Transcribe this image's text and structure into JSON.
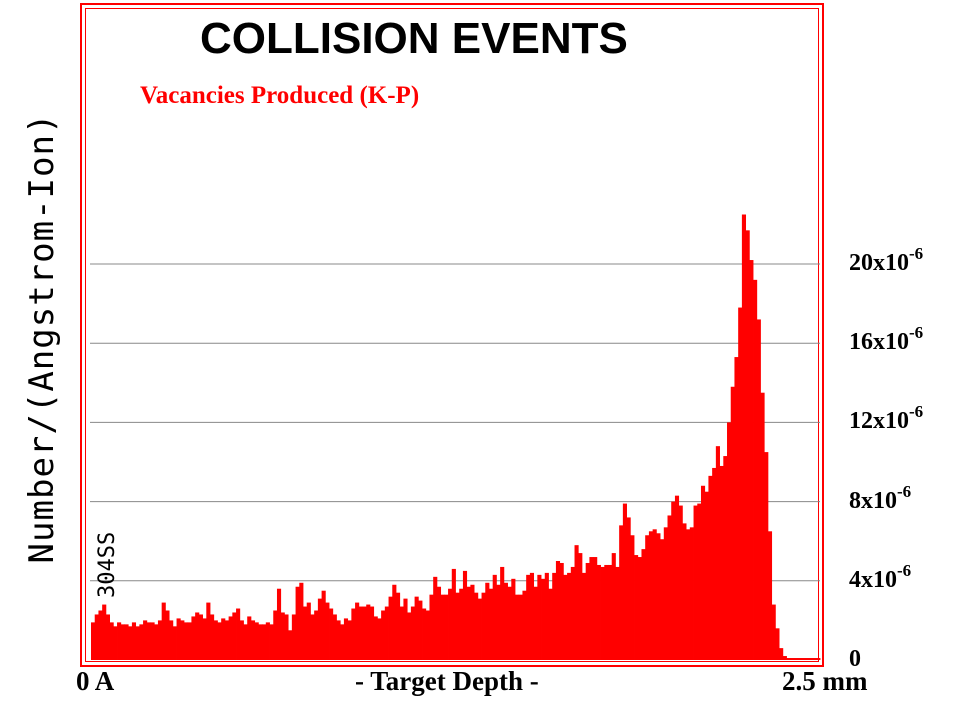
{
  "chart_data": {
    "type": "bar",
    "title": "COLLISION EVENTS",
    "subtitle": "Vacancies Produced (K-P)",
    "ylabel": "Number/(Angstrom-Ion)",
    "target_label": "304SS",
    "xlabel": "- Target Depth -",
    "x_start_label": "0 A",
    "x_end_label": "2.5 mm",
    "xlim": [
      0,
      2.5
    ],
    "x_unit": "mm",
    "ylim": [
      0,
      24
    ],
    "y_unit": "x10^-6",
    "yticks": [
      {
        "value": 0,
        "label": "0",
        "exp": ""
      },
      {
        "value": 4,
        "label": "4x10",
        "exp": "-6"
      },
      {
        "value": 8,
        "label": "8x10",
        "exp": "-6"
      },
      {
        "value": 12,
        "label": "12x10",
        "exp": "-6"
      },
      {
        "value": 16,
        "label": "16x10",
        "exp": "-6"
      },
      {
        "value": 20,
        "label": "20x10",
        "exp": "-6"
      }
    ],
    "grid": true,
    "bar_color": "#ff0000",
    "values": [
      1.9,
      2.3,
      2.5,
      2.8,
      2.3,
      1.9,
      1.7,
      1.9,
      1.8,
      1.8,
      1.7,
      1.9,
      1.7,
      1.8,
      2.0,
      1.9,
      1.9,
      1.8,
      2.0,
      2.9,
      2.5,
      2.0,
      1.7,
      2.1,
      2.0,
      1.9,
      1.9,
      2.2,
      2.4,
      2.3,
      2.1,
      2.9,
      2.3,
      2.0,
      1.9,
      2.1,
      2.0,
      2.2,
      2.4,
      2.6,
      2.0,
      1.8,
      2.2,
      2.0,
      1.9,
      1.8,
      1.8,
      1.9,
      1.8,
      2.5,
      3.6,
      2.4,
      2.3,
      1.5,
      2.3,
      3.7,
      3.9,
      2.7,
      2.9,
      2.3,
      2.5,
      3.1,
      3.5,
      2.9,
      2.6,
      2.3,
      2.0,
      1.8,
      2.1,
      2.0,
      2.6,
      2.9,
      2.7,
      2.7,
      2.8,
      2.7,
      2.2,
      2.1,
      2.5,
      2.7,
      3.2,
      3.8,
      3.4,
      2.7,
      3.1,
      2.4,
      2.7,
      3.2,
      3.0,
      2.6,
      2.5,
      3.3,
      4.2,
      3.7,
      3.3,
      3.3,
      3.6,
      4.6,
      3.4,
      3.6,
      4.5,
      3.7,
      3.8,
      3.4,
      3.1,
      3.4,
      3.9,
      3.6,
      4.3,
      3.8,
      4.7,
      3.9,
      3.7,
      4.1,
      3.3,
      3.3,
      3.5,
      4.3,
      4.4,
      3.7,
      4.3,
      4.1,
      4.4,
      3.6,
      4.4,
      5.0,
      4.9,
      4.3,
      4.4,
      4.7,
      5.8,
      5.4,
      4.4,
      4.9,
      5.2,
      5.2,
      4.8,
      4.7,
      4.8,
      4.8,
      5.4,
      4.7,
      6.8,
      7.9,
      7.2,
      6.3,
      5.3,
      5.2,
      5.6,
      6.3,
      6.5,
      6.6,
      6.4,
      6.1,
      6.7,
      7.3,
      8.0,
      8.3,
      7.8,
      6.9,
      6.6,
      6.7,
      7.8,
      7.9,
      8.8,
      8.5,
      9.3,
      9.7,
      10.8,
      9.8,
      10.3,
      12.0,
      13.8,
      15.3,
      17.8,
      22.5,
      21.7,
      20.2,
      19.2,
      17.2,
      13.5,
      10.5,
      6.5,
      2.8,
      1.6,
      0.6,
      0.2,
      0.1,
      0.1,
      0.1,
      0.1,
      0.1,
      0.1,
      0.1,
      0.1,
      0.1
    ]
  }
}
